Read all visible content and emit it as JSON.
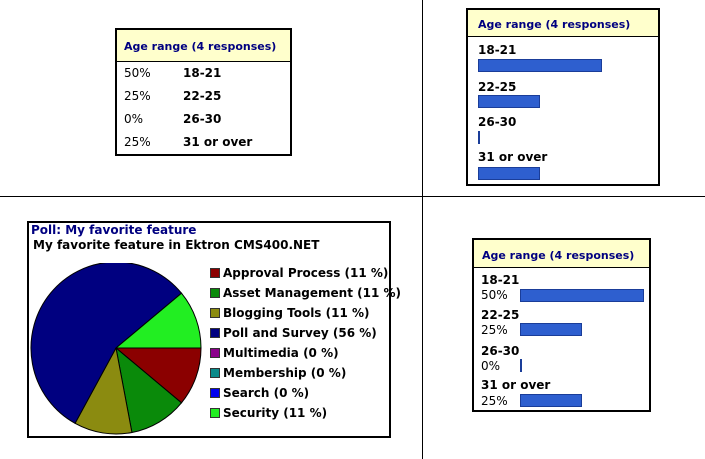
{
  "age_table": {
    "title": "Age range (4 responses)",
    "rows": [
      {
        "percent": "50%",
        "label": "18-21"
      },
      {
        "percent": "25%",
        "label": "22-25"
      },
      {
        "percent": "0%",
        "label": "26-30"
      },
      {
        "percent": "25%",
        "label": "31 or over"
      }
    ]
  },
  "age_bars": {
    "title": "Age range (4 responses)",
    "rows": [
      {
        "label": "18-21",
        "value": 50
      },
      {
        "label": "22-25",
        "value": 25
      },
      {
        "label": "26-30",
        "value": 0
      },
      {
        "label": "31 or over",
        "value": 25
      }
    ]
  },
  "poll": {
    "title": "Poll: My favorite feature",
    "subtitle": "My favorite feature in Ektron CMS400.NET",
    "items": [
      {
        "label": "Approval Process (11 %)",
        "value": 11,
        "color": "#8b0000"
      },
      {
        "label": "Asset Management (11 %)",
        "value": 11,
        "color": "#0a8a0a"
      },
      {
        "label": "Blogging Tools (11 %)",
        "value": 11,
        "color": "#8b8b10"
      },
      {
        "label": "Poll and Survey (56 %)",
        "value": 56,
        "color": "#000080"
      },
      {
        "label": "Multimedia (0 %)",
        "value": 0,
        "color": "#8b008b"
      },
      {
        "label": "Membership (0 %)",
        "value": 0,
        "color": "#0a8a8a"
      },
      {
        "label": "Search (0 %)",
        "value": 0,
        "color": "#0000ee"
      },
      {
        "label": "Security (11 %)",
        "value": 11,
        "color": "#22ee22"
      }
    ]
  },
  "age_bars_pct": {
    "title": "Age range (4 responses)",
    "rows": [
      {
        "label": "18-21",
        "percent": "50%",
        "value": 50
      },
      {
        "label": "22-25",
        "percent": "25%",
        "value": 25
      },
      {
        "label": "26-30",
        "percent": "0%",
        "value": 0
      },
      {
        "label": "31 or over",
        "percent": "25%",
        "value": 25
      }
    ]
  },
  "chart_data": [
    {
      "type": "table",
      "title": "Age range (4 responses)",
      "categories": [
        "18-21",
        "22-25",
        "26-30",
        "31 or over"
      ],
      "values": [
        50,
        25,
        0,
        25
      ]
    },
    {
      "type": "bar",
      "title": "Age range (4 responses)",
      "categories": [
        "18-21",
        "22-25",
        "26-30",
        "31 or over"
      ],
      "values": [
        50,
        25,
        0,
        25
      ]
    },
    {
      "type": "pie",
      "title": "Poll: My favorite feature",
      "subtitle": "My favorite feature in Ektron CMS400.NET",
      "categories": [
        "Approval Process",
        "Asset Management",
        "Blogging Tools",
        "Poll and Survey",
        "Multimedia",
        "Membership",
        "Search",
        "Security"
      ],
      "values": [
        11,
        11,
        11,
        56,
        0,
        0,
        0,
        11
      ]
    },
    {
      "type": "bar",
      "title": "Age range (4 responses)",
      "categories": [
        "18-21",
        "22-25",
        "26-30",
        "31 or over"
      ],
      "values": [
        50,
        25,
        0,
        25
      ]
    }
  ]
}
